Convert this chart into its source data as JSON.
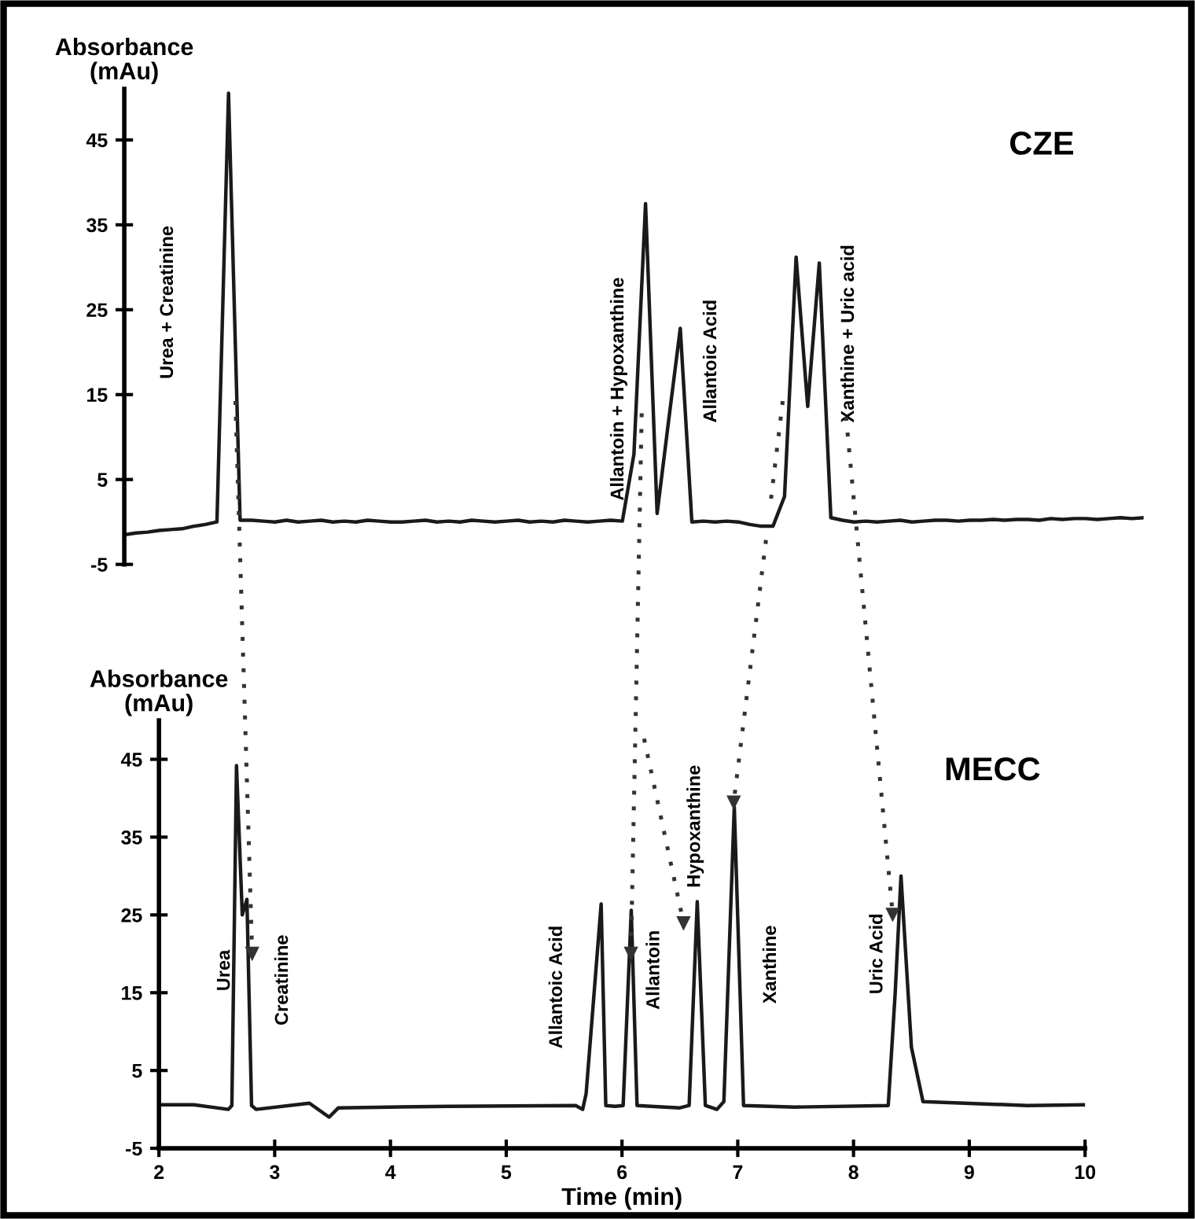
{
  "chart_data": [
    {
      "type": "line",
      "title": "CZE",
      "ylabel": "Absorbance\n(mAu)",
      "ylim": [
        -5,
        51
      ],
      "yticks": [
        -5,
        5,
        15,
        25,
        35,
        45
      ],
      "tick_labels": "y",
      "marker": "none",
      "line_style": "solid",
      "grid": false,
      "legend": false,
      "categories": [
        null,
        null,
        null,
        null,
        null,
        null,
        null,
        null,
        null,
        null,
        null,
        null,
        null,
        null,
        null,
        null,
        null,
        null,
        null,
        null,
        null,
        null,
        null,
        null,
        null,
        null,
        null,
        null,
        null,
        null,
        null,
        null,
        null,
        null,
        null,
        null,
        null,
        null,
        null,
        null,
        null,
        null,
        null,
        null,
        null,
        null,
        null,
        null,
        null,
        null,
        null,
        null,
        null,
        null,
        null,
        null,
        null,
        null,
        null,
        null,
        null,
        null,
        null,
        null,
        null,
        null,
        null,
        null,
        null,
        null,
        null,
        null,
        null,
        null,
        null,
        null,
        null,
        null,
        null,
        null,
        null,
        null,
        null,
        null,
        null,
        null,
        null,
        null,
        null
      ],
      "series": [
        {
          "color": "#1a1a1a",
          "values": [
            -1.5,
            -1.3,
            -1.2,
            -1.0,
            -0.9,
            -0.8,
            -0.5,
            -0.3,
            0,
            50.5,
            0.2,
            0.2,
            0.1,
            0,
            0.2,
            0,
            0.1,
            0.2,
            0,
            0.1,
            0,
            0.2,
            0.1,
            0,
            0,
            0.1,
            0.2,
            0,
            0.1,
            0,
            0.2,
            0.1,
            0,
            0.1,
            0.2,
            0,
            0.1,
            0,
            0.2,
            0.1,
            0,
            0.1,
            0.2,
            0.1,
            8,
            37.5,
            1,
            12,
            22.8,
            0,
            0.1,
            0,
            0.1,
            0,
            -0.3,
            -0.5,
            -0.5,
            3,
            31.2,
            13.6,
            30.5,
            0.5,
            0.2,
            0,
            0.1,
            0,
            0.1,
            0.2,
            0,
            0.1,
            0.2,
            0.2,
            0.1,
            0.2,
            0.2,
            0.3,
            0.2,
            0.3,
            0.3,
            0.2,
            0.4,
            0.3,
            0.4,
            0.4,
            0.3,
            0.4,
            0.5,
            0.4,
            0.5
          ]
        }
      ],
      "annotations": [
        "Urea + Creatinine",
        "Allantoin + Hypoxanthine",
        "Allantoic Acid",
        "Xanthine + Uric acid"
      ]
    },
    {
      "type": "line",
      "title": "MECC",
      "ylabel": "Absorbance\n(mAu)",
      "xlabel": "Time (min)",
      "xlim": [
        2,
        10
      ],
      "xticks": [
        2,
        3,
        4,
        5,
        6,
        7,
        8,
        9,
        10
      ],
      "ylim": [
        -5,
        50
      ],
      "yticks": [
        -5,
        5,
        15,
        25,
        35,
        45
      ],
      "marker": "none",
      "line_style": "solid",
      "grid": false,
      "legend": false,
      "series": [
        {
          "color": "#1a1a1a",
          "x": [
            2.0,
            2.3,
            2.6,
            2.63,
            2.67,
            2.72,
            2.76,
            2.8,
            2.84,
            3.3,
            3.47,
            3.55,
            4.5,
            5.6,
            5.66,
            5.69,
            5.82,
            5.86,
            5.94,
            6.01,
            6.08,
            6.13,
            6.5,
            6.58,
            6.65,
            6.72,
            6.82,
            6.88,
            6.97,
            7.05,
            7.5,
            8.3,
            8.36,
            8.41,
            8.5,
            8.6,
            9.5,
            10.0
          ],
          "values": [
            0.6,
            0.6,
            0,
            0.5,
            44.2,
            25,
            27,
            0.5,
            0,
            0.8,
            -1,
            0.2,
            0.4,
            0.5,
            0,
            2,
            26.4,
            0.5,
            0.4,
            0.5,
            25.6,
            0.5,
            0.2,
            0.5,
            26.7,
            0.5,
            0,
            1,
            38.9,
            0.5,
            0.3,
            0.5,
            15,
            30,
            8,
            1,
            0.5,
            0.6
          ]
        }
      ],
      "annotations": [
        {
          "text": "Urea",
          "x": 2.57,
          "y": 15.2
        },
        "Creatinine",
        "Allantoic Acid",
        "Allantoin",
        "Hypoxanthine",
        "Xanthine",
        "Uric Acid"
      ]
    }
  ]
}
